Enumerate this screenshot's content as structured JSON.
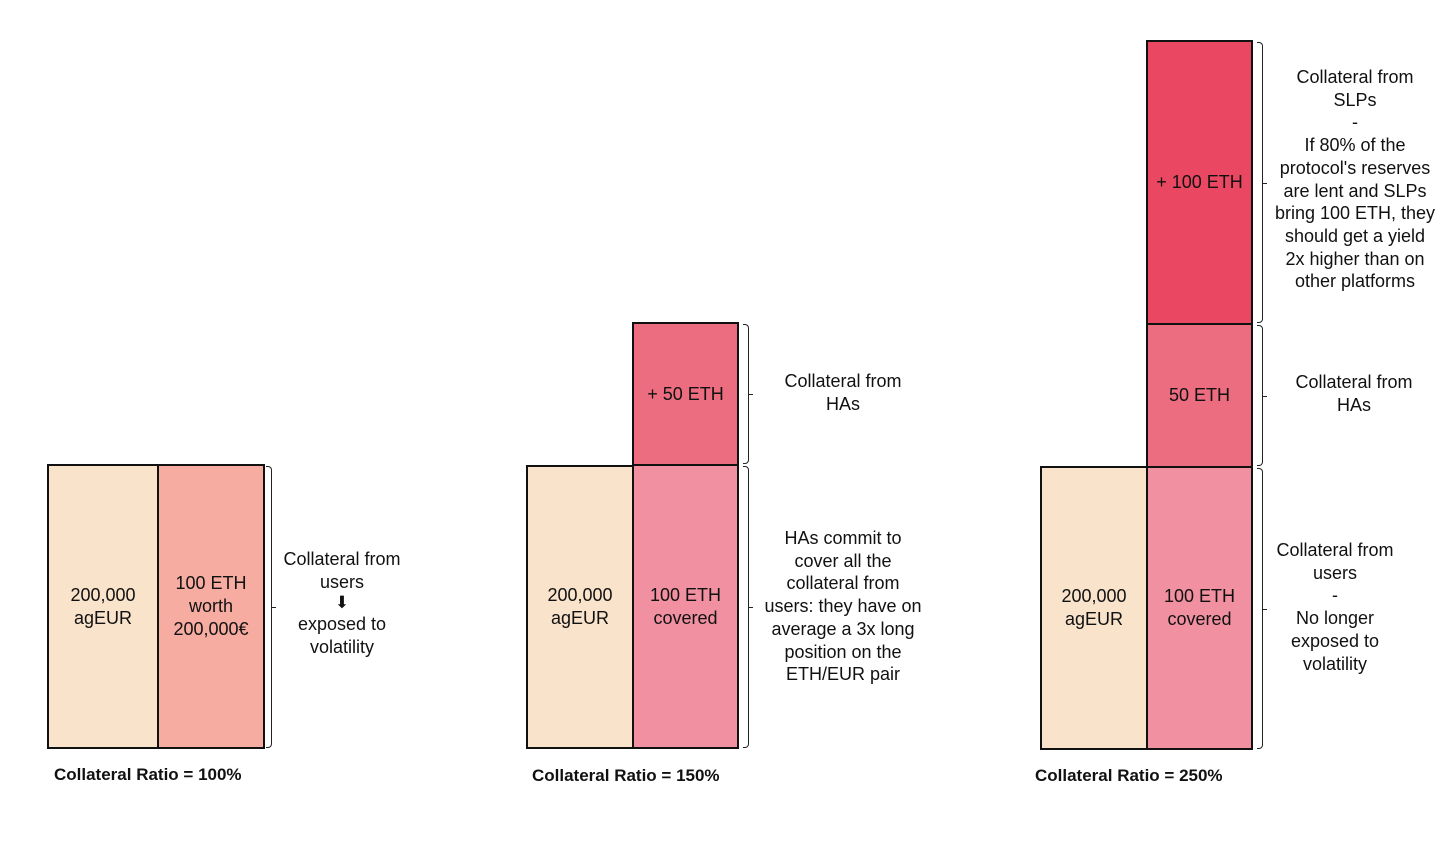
{
  "colors": {
    "agEUR": "#f9e3cb",
    "eth_worth": "#f7aca2",
    "eth_covered": "#f090a0",
    "has_eth": "#ec6c80",
    "slps_eth": "#e94762",
    "border": "#111111"
  },
  "panel1": {
    "box_agEUR": "200,000\nagEUR",
    "box_eth": "100 ETH\nworth\n200,000€",
    "note_top": "Collateral from\nusers",
    "arrow_icon": "down-arrow-icon",
    "note_bottom": "exposed to\nvolatility",
    "caption": "Collateral Ratio = 100%"
  },
  "panel2": {
    "box_agEUR": "200,000\nagEUR",
    "box_eth_covered": "100 ETH\ncovered",
    "box_has": "+ 50 ETH",
    "note_has": "Collateral from\nHAs",
    "note_users": "HAs commit to\ncover all the\ncollateral from\nusers: they have on\naverage a 3x long\nposition on the\nETH/EUR pair",
    "caption": "Collateral Ratio = 150%"
  },
  "panel3": {
    "box_agEUR": "200,000\nagEUR",
    "box_eth_covered": "100 ETH\ncovered",
    "box_has": "50 ETH",
    "box_slps": "+ 100 ETH",
    "note_slps": "Collateral from\nSLPs\n-\nIf 80% of the\nprotocol's reserves\nare lent and SLPs\nbring 100 ETH, they\nshould get a yield\n2x higher than on\nother platforms",
    "note_has": "Collateral from\nHAs",
    "note_users": "Collateral from\nusers\n-\nNo longer\nexposed to\nvolatility",
    "caption": "Collateral Ratio = 250%"
  }
}
